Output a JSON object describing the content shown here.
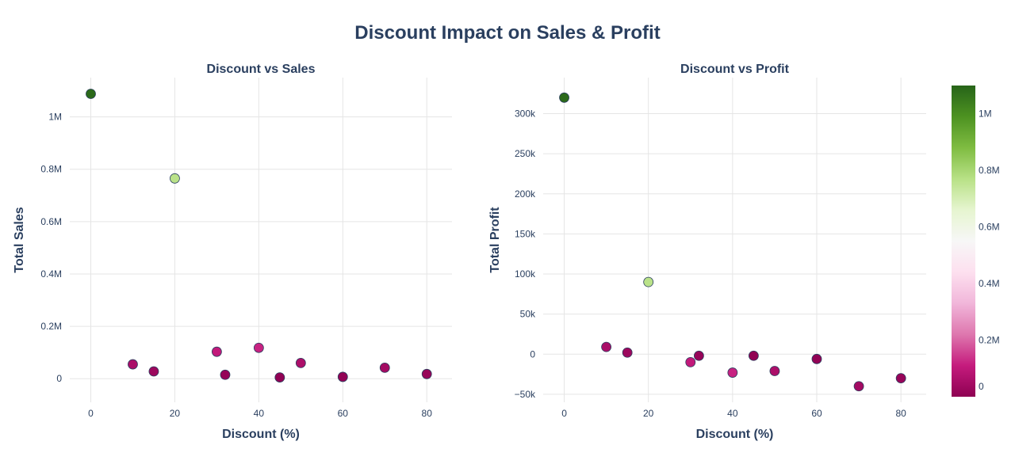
{
  "title": "Discount Impact on Sales & Profit",
  "chart_data": [
    {
      "type": "scatter",
      "title": "Discount vs Sales",
      "xlabel": "Discount (%)",
      "ylabel": "Total Sales",
      "xlim": [
        -5,
        86
      ],
      "ylim": [
        -90000,
        1150000
      ],
      "xticks": [
        0,
        20,
        40,
        60,
        80
      ],
      "xtick_labels": [
        "0",
        "20",
        "40",
        "60",
        "80"
      ],
      "yticks": [
        0,
        200000,
        400000,
        600000,
        800000,
        1000000
      ],
      "ytick_labels": [
        "0",
        "0.2M",
        "0.4M",
        "0.6M",
        "0.8M",
        "1M"
      ],
      "grid": true,
      "color_by": "Total Sales",
      "points": [
        {
          "x": 0,
          "y": 1088000
        },
        {
          "x": 10,
          "y": 55000
        },
        {
          "x": 15,
          "y": 28000
        },
        {
          "x": 20,
          "y": 765000
        },
        {
          "x": 30,
          "y": 103000
        },
        {
          "x": 32,
          "y": 15000
        },
        {
          "x": 40,
          "y": 118000
        },
        {
          "x": 45,
          "y": 5000
        },
        {
          "x": 50,
          "y": 60000
        },
        {
          "x": 60,
          "y": 7000
        },
        {
          "x": 70,
          "y": 42000
        },
        {
          "x": 80,
          "y": 18000
        }
      ]
    },
    {
      "type": "scatter",
      "title": "Discount vs Profit",
      "xlabel": "Discount (%)",
      "ylabel": "Total Profit",
      "xlim": [
        -5,
        86
      ],
      "ylim": [
        -60000,
        345000
      ],
      "xticks": [
        0,
        20,
        40,
        60,
        80
      ],
      "xtick_labels": [
        "0",
        "20",
        "40",
        "60",
        "80"
      ],
      "yticks": [
        -50000,
        0,
        50000,
        100000,
        150000,
        200000,
        250000,
        300000
      ],
      "ytick_labels": [
        "−50k",
        "0",
        "50k",
        "100k",
        "150k",
        "200k",
        "250k",
        "300k"
      ],
      "grid": true,
      "color_by": "Total Sales",
      "points": [
        {
          "x": 0,
          "y": 320000
        },
        {
          "x": 10,
          "y": 9000
        },
        {
          "x": 15,
          "y": 2000
        },
        {
          "x": 20,
          "y": 90000
        },
        {
          "x": 30,
          "y": -10000
        },
        {
          "x": 32,
          "y": -2000
        },
        {
          "x": 40,
          "y": -23000
        },
        {
          "x": 45,
          "y": -2000
        },
        {
          "x": 50,
          "y": -21000
        },
        {
          "x": 60,
          "y": -6000
        },
        {
          "x": 70,
          "y": -40000
        },
        {
          "x": 80,
          "y": -30000
        }
      ]
    }
  ],
  "colorbar": {
    "colorscale": "PiYG",
    "range": [
      0,
      1100000
    ],
    "ticks": [
      0,
      200000,
      400000,
      600000,
      800000,
      1000000
    ],
    "tick_labels": [
      "0",
      "0.2M",
      "0.4M",
      "0.6M",
      "0.8M",
      "1M"
    ],
    "colors": [
      "#8e0152",
      "#c51b7d",
      "#de77ae",
      "#f1b6da",
      "#fde0ef",
      "#f7f7f7",
      "#e6f5d0",
      "#b8e186",
      "#7fbc41",
      "#4d9221",
      "#276419"
    ]
  }
}
